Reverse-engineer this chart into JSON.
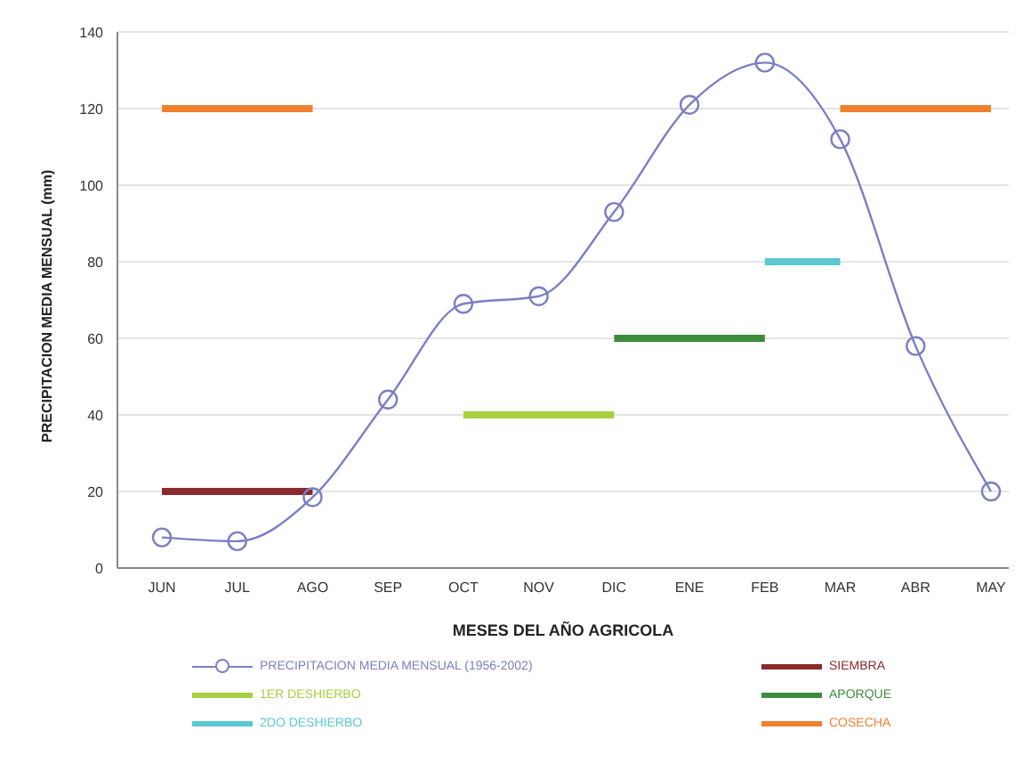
{
  "chart_data": {
    "type": "line",
    "xlabel": "MESES DEL AÑO AGRICOLA",
    "ylabel": "PRECIPITACION MEDIA MENSUAL (mm)",
    "categories": [
      "JUN",
      "JUL",
      "AGO",
      "SEP",
      "OCT",
      "NOV",
      "DIC",
      "ENE",
      "FEB",
      "MAR",
      "ABR",
      "MAY"
    ],
    "series": [
      {
        "name": "PRECIPITACION MEDIA MENSUAL (1956-2002)",
        "color": "#7b7fc4",
        "marker": "circle",
        "values": [
          8,
          7,
          18.5,
          44,
          69,
          71,
          93,
          121,
          132,
          112,
          58,
          20
        ]
      },
      {
        "name": "1ER DESHIERBO",
        "color": "#a8d040",
        "marker": "none",
        "values": [
          null,
          null,
          null,
          null,
          40,
          40,
          40,
          null,
          null,
          null,
          null,
          null
        ]
      },
      {
        "name": "2DO DESHIERBO",
        "color": "#5cc8d0",
        "marker": "none",
        "values": [
          null,
          null,
          null,
          null,
          null,
          null,
          null,
          null,
          80,
          80,
          null,
          null
        ]
      },
      {
        "name": "SIEMBRA",
        "color": "#8b2a2a",
        "marker": "none",
        "values": [
          20,
          20,
          20,
          null,
          null,
          null,
          null,
          null,
          null,
          null,
          null,
          null
        ]
      },
      {
        "name": "APORQUE",
        "color": "#3c8c3c",
        "marker": "none",
        "values": [
          null,
          null,
          null,
          null,
          null,
          null,
          60,
          60,
          60,
          null,
          null,
          null
        ]
      },
      {
        "name": "COSECHA",
        "color": "#f08030",
        "marker": "none",
        "values": [
          120,
          120,
          120,
          null,
          null,
          null,
          null,
          null,
          null,
          120,
          120,
          120
        ]
      }
    ],
    "ylim": [
      0,
      140
    ],
    "yticks": [
      0,
      20,
      40,
      60,
      80,
      100,
      120,
      140
    ],
    "grid": "y",
    "legend": "bottom"
  }
}
